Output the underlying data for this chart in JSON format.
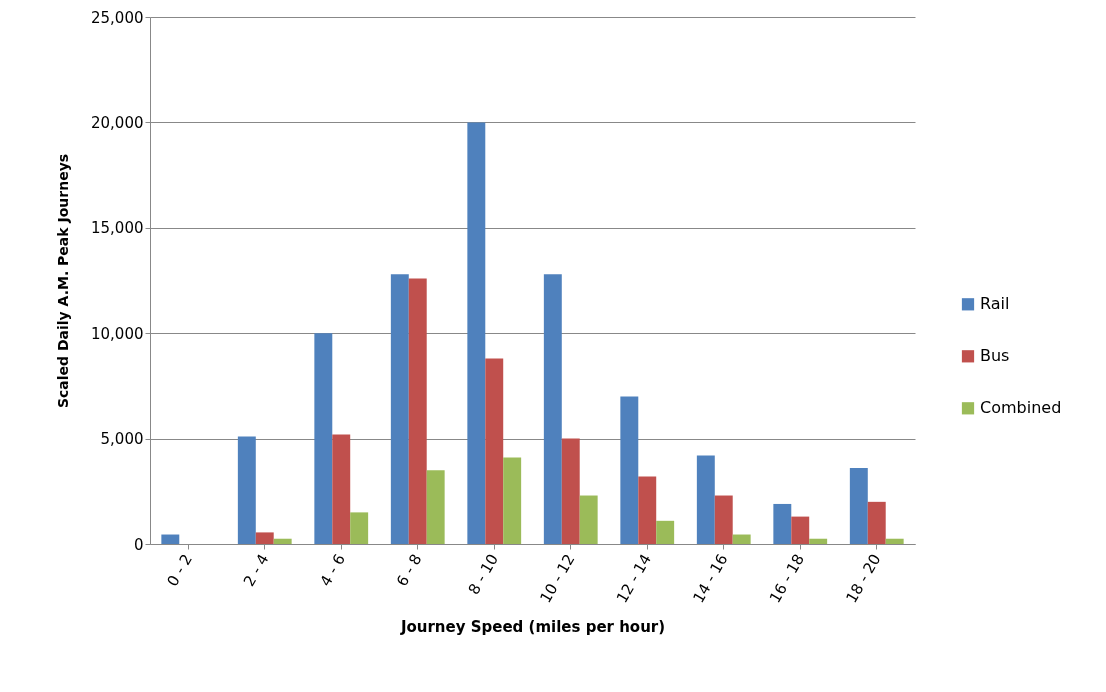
{
  "chart_data": {
    "type": "bar",
    "xlabel": "Journey Speed (miles per hour)",
    "ylabel": "Scaled  Daily A.M. Peak Journeys",
    "categories": [
      "0 - 2",
      "2 - 4",
      "4 - 6",
      "6 - 8",
      "8 - 10",
      "10 - 12",
      "12 - 14",
      "14 - 16",
      "16 - 18",
      "18 - 20"
    ],
    "series": [
      {
        "name": "Rail",
        "color": "#4f81bd",
        "values": [
          450,
          5100,
          10000,
          12800,
          20000,
          12800,
          7000,
          4200,
          1900,
          3600
        ]
      },
      {
        "name": "Bus",
        "color": "#c0504d",
        "values": [
          0,
          550,
          5200,
          12600,
          8800,
          5000,
          3200,
          2300,
          1300,
          2000
        ]
      },
      {
        "name": "Combined",
        "color": "#9bbb59",
        "values": [
          0,
          250,
          1500,
          3500,
          4100,
          2300,
          1100,
          450,
          250,
          250
        ]
      }
    ],
    "ylim": [
      0,
      25000
    ],
    "yticks": [
      0,
      {
        "value": 5000,
        "label": "5,000"
      },
      {
        "value": 10000,
        "label": "10,000"
      },
      {
        "value": 15000,
        "label": "15,000"
      },
      {
        "value": 20000,
        "label": "20,000"
      },
      {
        "value": 25000,
        "label": "25,000"
      }
    ],
    "grid": "y",
    "legend": "right"
  }
}
